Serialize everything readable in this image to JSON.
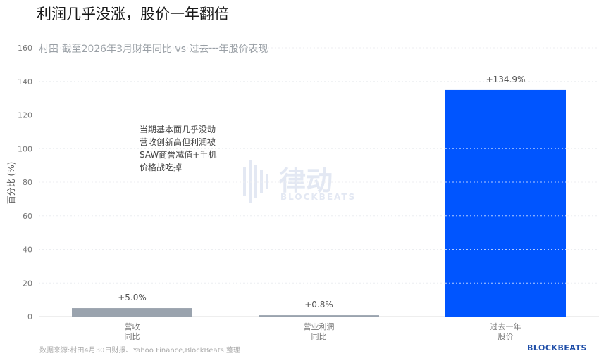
{
  "header": {
    "title": "利润几乎没涨，股价一年翻倍",
    "subtitle": "村田 截至2026年3月财年同比 vs 过去一年股价表现"
  },
  "annotation": "当期基本面几乎没动\n营收创新高但利润被\nSAW商誉减值+手机\n价格战吃掉",
  "source": "数据来源:村田4月30日财报、Yahoo Finance,BlockBeats 整理",
  "brand": "BLOCKBEATS",
  "watermark": {
    "text": "律动",
    "sub": "BLOCKBEATS"
  },
  "chart_data": {
    "type": "bar",
    "categories": [
      [
        "营收",
        "同比"
      ],
      [
        "营业利润",
        "同比"
      ],
      [
        "过去一年",
        "股价"
      ]
    ],
    "values": [
      5.0,
      0.8,
      134.9
    ],
    "data_labels": [
      "+5.0%",
      "+0.8%",
      "+134.9%"
    ],
    "colors": [
      "#9aa3ae",
      "#9aa3ae",
      "#0055ff"
    ],
    "ylabel": "百分比 (%)",
    "ylim": [
      0,
      160
    ],
    "yticks": [
      0,
      20,
      40,
      60,
      80,
      100,
      120,
      140,
      160
    ],
    "grid": true
  }
}
